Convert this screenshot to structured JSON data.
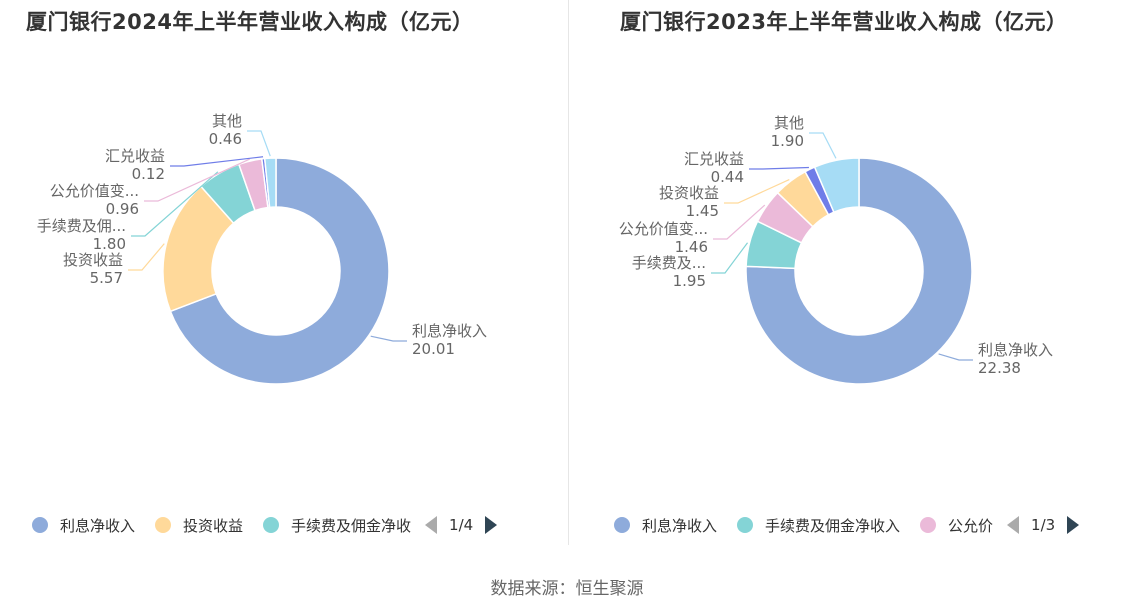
{
  "source": "数据来源：恒生聚源",
  "chart_data": [
    {
      "type": "pie",
      "title": "厦门银行2024年上半年营业收入构成（亿元）",
      "slices": [
        {
          "name": "利息净收入",
          "label": "利息净收入",
          "value": 20.01,
          "value_text": "20.01",
          "color": "#8eabdb"
        },
        {
          "name": "投资收益",
          "label": "投资收益",
          "value": 5.57,
          "value_text": "5.57",
          "color": "#ffd99a"
        },
        {
          "name": "手续费及佣金净收入",
          "label": "手续费及佣...",
          "value": 1.8,
          "value_text": "1.80",
          "color": "#84d4d6"
        },
        {
          "name": "公允价值变动收益",
          "label": "公允价值变...",
          "value": 0.96,
          "value_text": "0.96",
          "color": "#ebbad9"
        },
        {
          "name": "汇兑收益",
          "label": "汇兑收益",
          "value": 0.12,
          "value_text": "0.12",
          "color": "#6f7de8"
        },
        {
          "name": "其他",
          "label": "其他",
          "value": 0.46,
          "value_text": "0.46",
          "color": "#a6dcf5"
        }
      ],
      "legend": {
        "items": [
          {
            "label": "利息净收入",
            "color": "#8eabdb"
          },
          {
            "label": "投资收益",
            "color": "#ffd99a"
          },
          {
            "label": "手续费及佣金净收",
            "color": "#84d4d6"
          }
        ],
        "page": "1/4"
      }
    },
    {
      "type": "pie",
      "title": "厦门银行2023年上半年营业收入构成（亿元）",
      "slices": [
        {
          "name": "利息净收入",
          "label": "利息净收入",
          "value": 22.38,
          "value_text": "22.38",
          "color": "#8eabdb"
        },
        {
          "name": "手续费及佣金净收入",
          "label": "手续费及...",
          "value": 1.95,
          "value_text": "1.95",
          "color": "#84d4d6"
        },
        {
          "name": "公允价值变动收益",
          "label": "公允价值变...",
          "value": 1.46,
          "value_text": "1.46",
          "color": "#ebbad9"
        },
        {
          "name": "投资收益",
          "label": "投资收益",
          "value": 1.45,
          "value_text": "1.45",
          "color": "#ffd99a"
        },
        {
          "name": "汇兑收益",
          "label": "汇兑收益",
          "value": 0.44,
          "value_text": "0.44",
          "color": "#6f7de8"
        },
        {
          "name": "其他",
          "label": "其他",
          "value": 1.9,
          "value_text": "1.90",
          "color": "#a6dcf5"
        }
      ],
      "legend": {
        "items": [
          {
            "label": "利息净收入",
            "color": "#8eabdb"
          },
          {
            "label": "手续费及佣金净收入",
            "color": "#84d4d6"
          },
          {
            "label": "公允价",
            "color": "#ebbad9"
          }
        ],
        "page": "1/3"
      }
    }
  ]
}
